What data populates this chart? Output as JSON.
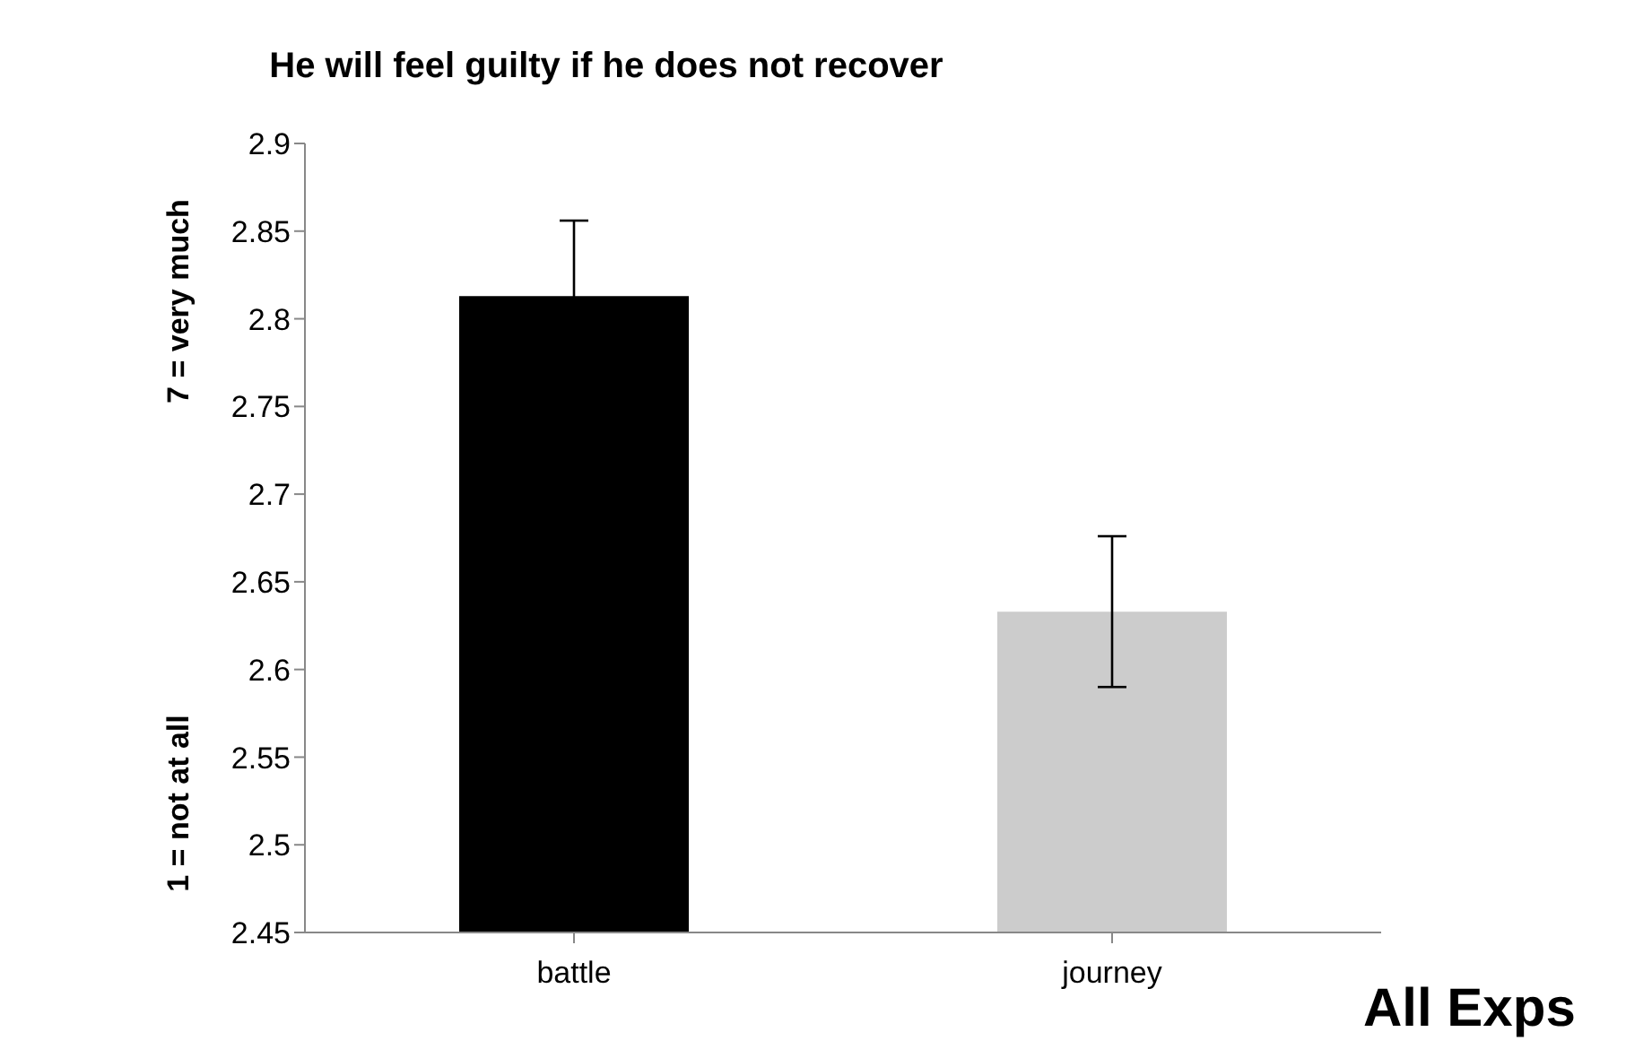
{
  "chart_data": {
    "type": "bar",
    "title": "He will feel guilty if he does not recover",
    "ylabel": "7 = very much",
    "annotations": [
      "1 = not at all",
      "All Exps"
    ],
    "categories": [
      "battle",
      "journey"
    ],
    "values": [
      2.813,
      2.633
    ],
    "colors": [
      "#000000",
      "#cccccc"
    ],
    "errors": [
      0.043,
      0.043
    ],
    "ylim": [
      2.45,
      2.9
    ],
    "yticks": [
      2.45,
      2.5,
      2.55,
      2.6,
      2.65,
      2.7,
      2.75,
      2.8,
      2.85,
      2.9
    ],
    "grid": false,
    "legend": false
  }
}
